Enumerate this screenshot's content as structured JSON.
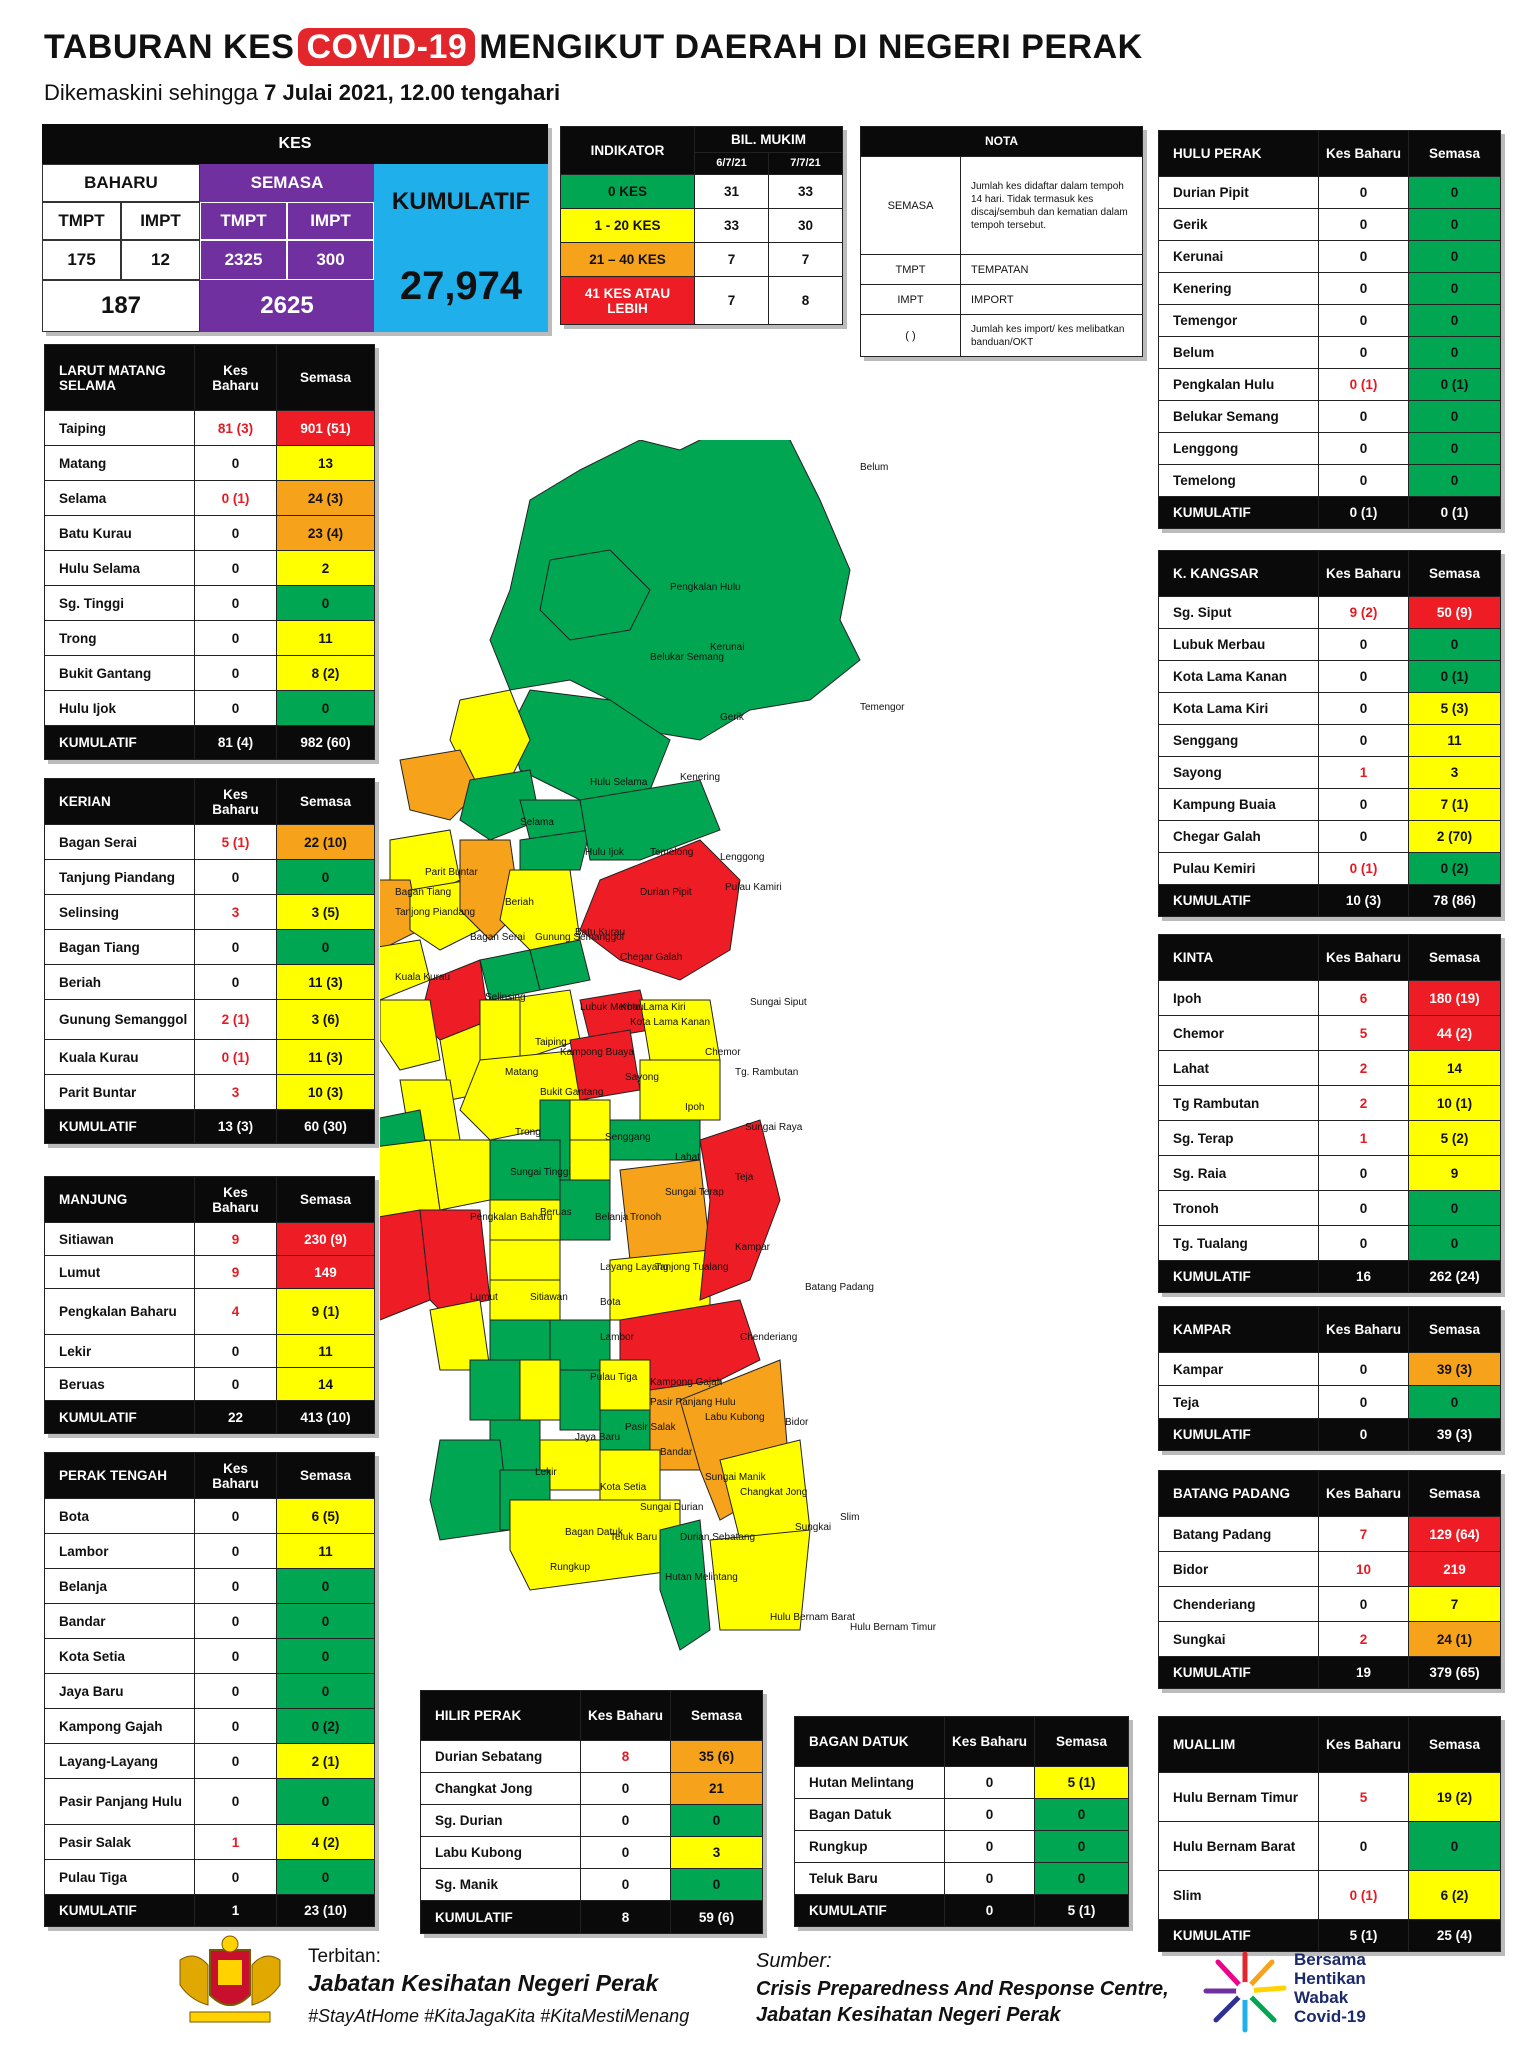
{
  "header": {
    "title_pre": "TABURAN KES",
    "title_covid": "COVID-19",
    "title_post": "MENGIKUT DAERAH DI NEGERI PERAK",
    "subtitle_pre": "Dikemaskini sehingga",
    "subtitle_date": "7 Julai 2021, 12.00 tengahari"
  },
  "summary": {
    "kes": "KES",
    "baharu": "BAHARU",
    "semasa": "SEMASA",
    "kumulatif": "KUMULATIF",
    "tmpt": "TMPT",
    "impt": "IMPT",
    "baharu_tmpt": "175",
    "baharu_impt": "12",
    "semasa_tmpt": "2325",
    "semasa_impt": "300",
    "baharu_total": "187",
    "semasa_total": "2625",
    "kumulatif_total": "27,974"
  },
  "indicator": {
    "header": "INDIKATOR",
    "bil_mukim": "BIL. MUKIM",
    "d1": "6/7/21",
    "d2": "7/7/21",
    "rows": [
      {
        "label": "0 KES",
        "v1": "31",
        "v2": "33",
        "color": "#00a651"
      },
      {
        "label": "1 - 20 KES",
        "v1": "33",
        "v2": "30",
        "color": "#ffff00"
      },
      {
        "label": "21 – 40 KES",
        "v1": "7",
        "v2": "7",
        "color": "#f7a21b"
      },
      {
        "label": "41 KES ATAU LEBIH",
        "v1": "7",
        "v2": "8",
        "color": "#ee1c25"
      }
    ]
  },
  "nota": {
    "header": "NOTA",
    "rows": [
      {
        "key": "SEMASA",
        "text": "Jumlah kes didaftar dalam tempoh 14 hari. Tidak termasuk kes discaj/sembuh dan kematian dalam tempoh tersebut."
      },
      {
        "key": "TMPT",
        "text": "TEMPATAN"
      },
      {
        "key": "IMPT",
        "text": "IMPORT"
      },
      {
        "key": "( )",
        "text": "Jumlah kes import/ kes melibatkan banduan/OKT"
      }
    ]
  },
  "col_kes_baharu": "Kes Baharu",
  "col_semasa": "Semasa",
  "districts": {
    "larut": {
      "name": "LARUT MATANG SELAMA",
      "rows": [
        {
          "n": "Taiping",
          "b": "81 (3)",
          "s": "901 (51)",
          "bc": "red",
          "sc": "r"
        },
        {
          "n": "Matang",
          "b": "0",
          "s": "13",
          "bc": "",
          "sc": "y"
        },
        {
          "n": "Selama",
          "b": "0 (1)",
          "s": "24 (3)",
          "bc": "red",
          "sc": "o"
        },
        {
          "n": "Batu Kurau",
          "b": "0",
          "s": "23 (4)",
          "bc": "",
          "sc": "o"
        },
        {
          "n": "Hulu Selama",
          "b": "0",
          "s": "2",
          "bc": "",
          "sc": "y"
        },
        {
          "n": "Sg. Tinggi",
          "b": "0",
          "s": "0",
          "bc": "",
          "sc": "g"
        },
        {
          "n": "Trong",
          "b": "0",
          "s": "11",
          "bc": "",
          "sc": "y"
        },
        {
          "n": "Bukit Gantang",
          "b": "0",
          "s": "8 (2)",
          "bc": "",
          "sc": "y"
        },
        {
          "n": "Hulu Ijok",
          "b": "0",
          "s": "0",
          "bc": "",
          "sc": "g"
        }
      ],
      "total_label": "KUMULATIF",
      "total_b": "81 (4)",
      "total_s": "982 (60)"
    },
    "kerian": {
      "name": "KERIAN",
      "rows": [
        {
          "n": "Bagan Serai",
          "b": "5 (1)",
          "s": "22 (10)",
          "bc": "red",
          "sc": "o"
        },
        {
          "n": "Tanjung Piandang",
          "b": "0",
          "s": "0",
          "bc": "",
          "sc": "g"
        },
        {
          "n": "Selinsing",
          "b": "3",
          "s": "3 (5)",
          "bc": "red",
          "sc": "y"
        },
        {
          "n": "Bagan Tiang",
          "b": "0",
          "s": "0",
          "bc": "",
          "sc": "g"
        },
        {
          "n": "Beriah",
          "b": "0",
          "s": "11 (3)",
          "bc": "",
          "sc": "y"
        },
        {
          "n": "Gunung Semanggol",
          "b": "2 (1)",
          "s": "3 (6)",
          "bc": "red",
          "sc": "y"
        },
        {
          "n": "Kuala Kurau",
          "b": "0 (1)",
          "s": "11 (3)",
          "bc": "red",
          "sc": "y"
        },
        {
          "n": "Parit Buntar",
          "b": "3",
          "s": "10 (3)",
          "bc": "red",
          "sc": "y"
        }
      ],
      "total_label": "KUMULATIF",
      "total_b": "13 (3)",
      "total_s": "60 (30)"
    },
    "manjung": {
      "name": "MANJUNG",
      "rows": [
        {
          "n": "Sitiawan",
          "b": "9",
          "s": "230 (9)",
          "bc": "red",
          "sc": "r"
        },
        {
          "n": "Lumut",
          "b": "9",
          "s": "149",
          "bc": "red",
          "sc": "r"
        },
        {
          "n": "Pengkalan Baharu",
          "b": "4",
          "s": "9 (1)",
          "bc": "red",
          "sc": "y"
        },
        {
          "n": "Lekir",
          "b": "0",
          "s": "11",
          "bc": "",
          "sc": "y"
        },
        {
          "n": "Beruas",
          "b": "0",
          "s": "14",
          "bc": "",
          "sc": "y"
        }
      ],
      "total_label": "KUMULATIF",
      "total_b": "22",
      "total_s": "413 (10)"
    },
    "perak_tengah": {
      "name": "PERAK TENGAH",
      "rows": [
        {
          "n": "Bota",
          "b": "0",
          "s": "6 (5)",
          "bc": "",
          "sc": "y"
        },
        {
          "n": "Lambor",
          "b": "0",
          "s": "11",
          "bc": "",
          "sc": "y"
        },
        {
          "n": "Belanja",
          "b": "0",
          "s": "0",
          "bc": "",
          "sc": "g"
        },
        {
          "n": "Bandar",
          "b": "0",
          "s": "0",
          "bc": "",
          "sc": "g"
        },
        {
          "n": "Kota Setia",
          "b": "0",
          "s": "0",
          "bc": "",
          "sc": "g"
        },
        {
          "n": "Jaya Baru",
          "b": "0",
          "s": "0",
          "bc": "",
          "sc": "g"
        },
        {
          "n": "Kampong Gajah",
          "b": "0",
          "s": "0 (2)",
          "bc": "",
          "sc": "g"
        },
        {
          "n": "Layang-Layang",
          "b": "0",
          "s": "2 (1)",
          "bc": "",
          "sc": "y"
        },
        {
          "n": "Pasir Panjang Hulu",
          "b": "0",
          "s": "0",
          "bc": "",
          "sc": "g"
        },
        {
          "n": "Pasir Salak",
          "b": "1",
          "s": "4 (2)",
          "bc": "red",
          "sc": "y"
        },
        {
          "n": "Pulau Tiga",
          "b": "0",
          "s": "0",
          "bc": "",
          "sc": "g"
        }
      ],
      "total_label": "KUMULATIF",
      "total_b": "1",
      "total_s": "23 (10)"
    },
    "hulu_perak": {
      "name": "HULU PERAK",
      "rows": [
        {
          "n": "Durian Pipit",
          "b": "0",
          "s": "0",
          "bc": "",
          "sc": "g"
        },
        {
          "n": "Gerik",
          "b": "0",
          "s": "0",
          "bc": "",
          "sc": "g"
        },
        {
          "n": "Kerunai",
          "b": "0",
          "s": "0",
          "bc": "",
          "sc": "g"
        },
        {
          "n": "Kenering",
          "b": "0",
          "s": "0",
          "bc": "",
          "sc": "g"
        },
        {
          "n": "Temengor",
          "b": "0",
          "s": "0",
          "bc": "",
          "sc": "g"
        },
        {
          "n": "Belum",
          "b": "0",
          "s": "0",
          "bc": "",
          "sc": "g"
        },
        {
          "n": "Pengkalan Hulu",
          "b": "0 (1)",
          "s": "0 (1)",
          "bc": "red",
          "sc": "g"
        },
        {
          "n": "Belukar Semang",
          "b": "0",
          "s": "0",
          "bc": "",
          "sc": "g"
        },
        {
          "n": "Lenggong",
          "b": "0",
          "s": "0",
          "bc": "",
          "sc": "g"
        },
        {
          "n": "Temelong",
          "b": "0",
          "s": "0",
          "bc": "",
          "sc": "g"
        }
      ],
      "total_label": "KUMULATIF",
      "total_b": "0 (1)",
      "total_s": "0 (1)"
    },
    "kangsar": {
      "name": "K. KANGSAR",
      "rows": [
        {
          "n": "Sg. Siput",
          "b": "9 (2)",
          "s": "50 (9)",
          "bc": "red",
          "sc": "r"
        },
        {
          "n": "Lubuk Merbau",
          "b": "0",
          "s": "0",
          "bc": "",
          "sc": "g"
        },
        {
          "n": "Kota Lama Kanan",
          "b": "0",
          "s": "0 (1)",
          "bc": "",
          "sc": "g"
        },
        {
          "n": "Kota Lama Kiri",
          "b": "0",
          "s": "5 (3)",
          "bc": "",
          "sc": "y"
        },
        {
          "n": "Senggang",
          "b": "0",
          "s": "11",
          "bc": "",
          "sc": "y"
        },
        {
          "n": "Sayong",
          "b": "1",
          "s": "3",
          "bc": "red",
          "sc": "y"
        },
        {
          "n": "Kampung Buaia",
          "b": "0",
          "s": "7 (1)",
          "bc": "",
          "sc": "y"
        },
        {
          "n": "Chegar Galah",
          "b": "0",
          "s": "2 (70)",
          "bc": "",
          "sc": "y"
        },
        {
          "n": "Pulau Kemiri",
          "b": "0 (1)",
          "s": "0 (2)",
          "bc": "red",
          "sc": "g"
        }
      ],
      "total_label": "KUMULATIF",
      "total_b": "10 (3)",
      "total_s": "78 (86)"
    },
    "kinta": {
      "name": "KINTA",
      "rows": [
        {
          "n": "Ipoh",
          "b": "6",
          "s": "180 (19)",
          "bc": "red",
          "sc": "r"
        },
        {
          "n": "Chemor",
          "b": "5",
          "s": "44 (2)",
          "bc": "red",
          "sc": "r"
        },
        {
          "n": "Lahat",
          "b": "2",
          "s": "14",
          "bc": "red",
          "sc": "y"
        },
        {
          "n": "Tg Rambutan",
          "b": "2",
          "s": "10 (1)",
          "bc": "red",
          "sc": "y"
        },
        {
          "n": "Sg. Terap",
          "b": "1",
          "s": "5 (2)",
          "bc": "red",
          "sc": "y"
        },
        {
          "n": "Sg. Raia",
          "b": "0",
          "s": "9",
          "bc": "",
          "sc": "y"
        },
        {
          "n": "Tronoh",
          "b": "0",
          "s": "0",
          "bc": "",
          "sc": "g"
        },
        {
          "n": "Tg. Tualang",
          "b": "0",
          "s": "0",
          "bc": "",
          "sc": "g"
        }
      ],
      "total_label": "KUMULATIF",
      "total_b": "16",
      "total_s": "262 (24)"
    },
    "kampar": {
      "name": "KAMPAR",
      "rows": [
        {
          "n": "Kampar",
          "b": "0",
          "s": "39 (3)",
          "bc": "",
          "sc": "o"
        },
        {
          "n": "Teja",
          "b": "0",
          "s": "0",
          "bc": "",
          "sc": "g"
        }
      ],
      "total_label": "KUMULATIF",
      "total_b": "0",
      "total_s": "39 (3)"
    },
    "batang_padang": {
      "name": "BATANG PADANG",
      "rows": [
        {
          "n": "Batang Padang",
          "b": "7",
          "s": "129 (64)",
          "bc": "red",
          "sc": "r"
        },
        {
          "n": "Bidor",
          "b": "10",
          "s": "219",
          "bc": "red",
          "sc": "r"
        },
        {
          "n": "Chenderiang",
          "b": "0",
          "s": "7",
          "bc": "",
          "sc": "y"
        },
        {
          "n": "Sungkai",
          "b": "2",
          "s": "24 (1)",
          "bc": "red",
          "sc": "o"
        }
      ],
      "total_label": "KUMULATIF",
      "total_b": "19",
      "total_s": "379 (65)"
    },
    "muallim": {
      "name": "MUALLIM",
      "rows": [
        {
          "n": "Hulu Bernam Timur",
          "b": "5",
          "s": "19 (2)",
          "bc": "red",
          "sc": "y"
        },
        {
          "n": "Hulu Bernam Barat",
          "b": "0",
          "s": "0",
          "bc": "",
          "sc": "g"
        },
        {
          "n": "Slim",
          "b": "0 (1)",
          "s": "6 (2)",
          "bc": "red",
          "sc": "y"
        }
      ],
      "total_label": "KUMULATIF",
      "total_b": "5 (1)",
      "total_s": "25 (4)"
    },
    "hilir_perak": {
      "name": "HILIR PERAK",
      "rows": [
        {
          "n": "Durian Sebatang",
          "b": "8",
          "s": "35 (6)",
          "bc": "red",
          "sc": "o"
        },
        {
          "n": "Changkat Jong",
          "b": "0",
          "s": "21",
          "bc": "",
          "sc": "o"
        },
        {
          "n": "Sg. Durian",
          "b": "0",
          "s": "0",
          "bc": "",
          "sc": "g"
        },
        {
          "n": "Labu Kubong",
          "b": "0",
          "s": "3",
          "bc": "",
          "sc": "y"
        },
        {
          "n": "Sg. Manik",
          "b": "0",
          "s": "0",
          "bc": "",
          "sc": "g"
        }
      ],
      "total_label": "KUMULATIF",
      "total_b": "8",
      "total_s": "59 (6)"
    },
    "bagan_datuk": {
      "name": "BAGAN DATUK",
      "rows": [
        {
          "n": "Hutan Melintang",
          "b": "0",
          "s": "5 (1)",
          "bc": "",
          "sc": "y"
        },
        {
          "n": "Bagan Datuk",
          "b": "0",
          "s": "0",
          "bc": "",
          "sc": "g"
        },
        {
          "n": "Rungkup",
          "b": "0",
          "s": "0",
          "bc": "",
          "sc": "g"
        },
        {
          "n": "Teluk Baru",
          "b": "0",
          "s": "0",
          "bc": "",
          "sc": "g"
        }
      ],
      "total_label": "KUMULATIF",
      "total_b": "0",
      "total_s": "5 (1)"
    }
  },
  "map_labels": [
    "Belum",
    "Pengkalan Hulu",
    "Belukar Semang",
    "Kerunai",
    "Temengor",
    "Gerik",
    "Kenering",
    "Hulu Selama",
    "Selama",
    "Hulu Ijok",
    "Lenggong",
    "Parit Buntar",
    "Bagan Tiang",
    "Tanjong Piandang",
    "Beriah",
    "Bagan Serai",
    "Kuala Kurau",
    "Gunung Semanggol",
    "Batu Kurau",
    "Temelong",
    "Durian Pipit",
    "Pulau Kamiri",
    "Selinsing",
    "Chegar Galah",
    "Taiping",
    "Sungai Siput",
    "Lubuk Merbau",
    "Kota Lama Kiri",
    "Kota Lama Kanan",
    "Matang",
    "Kampong Buaya",
    "Sayong",
    "Bukit Gantang",
    "Trong",
    "Chemor",
    "Tg. Rambutan",
    "Sungai Tinggi",
    "Senggang",
    "Ipoh",
    "Sungai Raya",
    "Lahat",
    "Sungai Terap",
    "Teja",
    "Pengkalan Baharu",
    "Beruas",
    "Belanja",
    "Tronoh",
    "Layang Layang",
    "Tanjong Tualang",
    "Kampar",
    "Bota",
    "Lumut",
    "Sitiawan",
    "Lambor",
    "Batang Padang",
    "Chenderiang",
    "Pulau Tiga",
    "Kampong Gajah",
    "Pasir Panjang Hulu",
    "Labu Kubong",
    "Jaya Baru",
    "Pasir Salak",
    "Bidor",
    "Bandar",
    "Lekir",
    "Kota Setia",
    "Sungai Manik",
    "Sungai Durian",
    "Changkat Jong",
    "Bagan Datuk",
    "Teluk Baru",
    "Durian Sebatang",
    "Sungkai",
    "Rungkup",
    "Slim",
    "Hutan Melintang",
    "Hulu Bernam Barat",
    "Hulu Bernam Timur"
  ],
  "footer": {
    "terbitan_label": "Terbitan:",
    "terbitan_org": "Jabatan Kesihatan Negeri Perak",
    "hashtags": "#StayAtHome #KitaJagaKita #KitaMestiMenang",
    "sumber_label": "Sumber:",
    "sumber_1": "Crisis Preparedness And Response Centre,",
    "sumber_2": "Jabatan Kesihatan Negeri Perak",
    "logo_text": "Bersama Hentikan Wabak Covid-19"
  }
}
